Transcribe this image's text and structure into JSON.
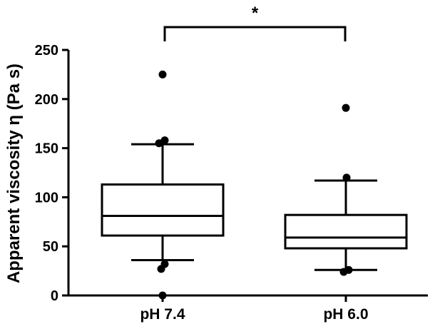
{
  "chart_data": {
    "type": "box",
    "ylabel": "Apparent viscosity η (Pa s)",
    "ylim": [
      0,
      250
    ],
    "yticks": [
      0,
      50,
      100,
      150,
      200,
      250
    ],
    "yticklabels": [
      "0",
      "50",
      "100",
      "150",
      "200",
      "250"
    ],
    "grid": false,
    "categories": [
      "pH 7.4",
      "pH 6.0"
    ],
    "boxes": [
      {
        "category": "pH 7.4",
        "whisker_low": 36,
        "q1": 61,
        "median": 81,
        "q3": 113,
        "whisker_high": 154,
        "outliers": [
          0,
          27,
          32,
          155,
          158,
          225
        ]
      },
      {
        "category": "pH 6.0",
        "whisker_low": 26,
        "q1": 48,
        "median": 59,
        "q3": 82,
        "whisker_high": 117,
        "outliers": [
          24,
          26,
          120,
          191
        ]
      }
    ],
    "annotations": [
      {
        "type": "significance_bracket",
        "between": [
          "pH 7.4",
          "pH 6.0"
        ],
        "label": "*"
      }
    ],
    "colors": {
      "stroke": "#000000",
      "box_fill": "#ffffff",
      "outlier": "#000000"
    }
  }
}
